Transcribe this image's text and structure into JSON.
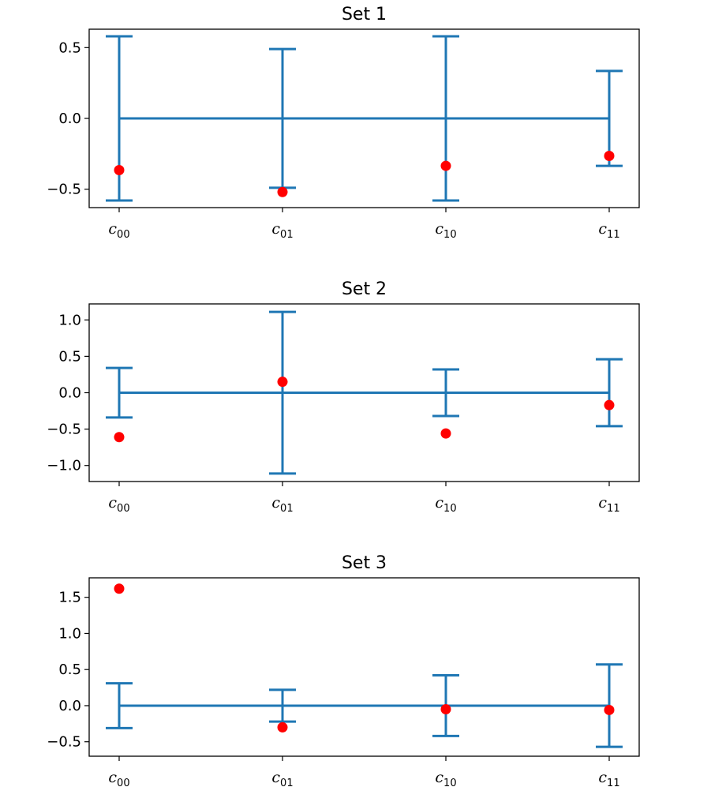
{
  "colors": {
    "errorbar": "#1f77b4",
    "marker": "#ff0000",
    "axes": "#000000"
  },
  "chart_data": [
    {
      "type": "errorbar",
      "title": "Set 1",
      "xlabel": "",
      "ylabel": "",
      "categories": [
        {
          "base": "c",
          "sub": "00"
        },
        {
          "base": "c",
          "sub": "01"
        },
        {
          "base": "c",
          "sub": "10"
        },
        {
          "base": "c",
          "sub": "11"
        }
      ],
      "ylim": [
        -0.63,
        0.63
      ],
      "yticks": [
        -0.5,
        0.0,
        0.5
      ],
      "ytick_labels": [
        "−0.5",
        "0.0",
        "0.5"
      ],
      "errorbars": {
        "center": [
          0.0,
          0.0,
          0.0,
          0.0
        ],
        "err": [
          0.58,
          0.49,
          0.58,
          0.335
        ]
      },
      "points": [
        -0.365,
        -0.52,
        -0.335,
        -0.265
      ]
    },
    {
      "type": "errorbar",
      "title": "Set 2",
      "xlabel": "",
      "ylabel": "",
      "categories": [
        {
          "base": "c",
          "sub": "00"
        },
        {
          "base": "c",
          "sub": "01"
        },
        {
          "base": "c",
          "sub": "10"
        },
        {
          "base": "c",
          "sub": "11"
        }
      ],
      "ylim": [
        -1.22,
        1.22
      ],
      "yticks": [
        -1.0,
        -0.5,
        0.0,
        0.5,
        1.0
      ],
      "ytick_labels": [
        "−1.0",
        "−0.5",
        "0.0",
        "0.5",
        "1.0"
      ],
      "errorbars": {
        "center": [
          0.0,
          0.0,
          0.0,
          0.0
        ],
        "err": [
          0.34,
          1.11,
          0.32,
          0.46
        ]
      },
      "points": [
        -0.61,
        0.15,
        -0.56,
        -0.17
      ]
    },
    {
      "type": "errorbar",
      "title": "Set 3",
      "xlabel": "",
      "ylabel": "",
      "categories": [
        {
          "base": "c",
          "sub": "00"
        },
        {
          "base": "c",
          "sub": "01"
        },
        {
          "base": "c",
          "sub": "10"
        },
        {
          "base": "c",
          "sub": "11"
        }
      ],
      "ylim": [
        -0.7,
        1.77
      ],
      "yticks": [
        -0.5,
        0.0,
        0.5,
        1.0,
        1.5
      ],
      "ytick_labels": [
        "−0.5",
        "0.0",
        "0.5",
        "1.0",
        "1.5"
      ],
      "errorbars": {
        "center": [
          0.0,
          0.0,
          0.0,
          0.0
        ],
        "err": [
          0.31,
          0.22,
          0.42,
          0.57
        ]
      },
      "points": [
        1.62,
        -0.3,
        -0.05,
        -0.06
      ]
    }
  ]
}
